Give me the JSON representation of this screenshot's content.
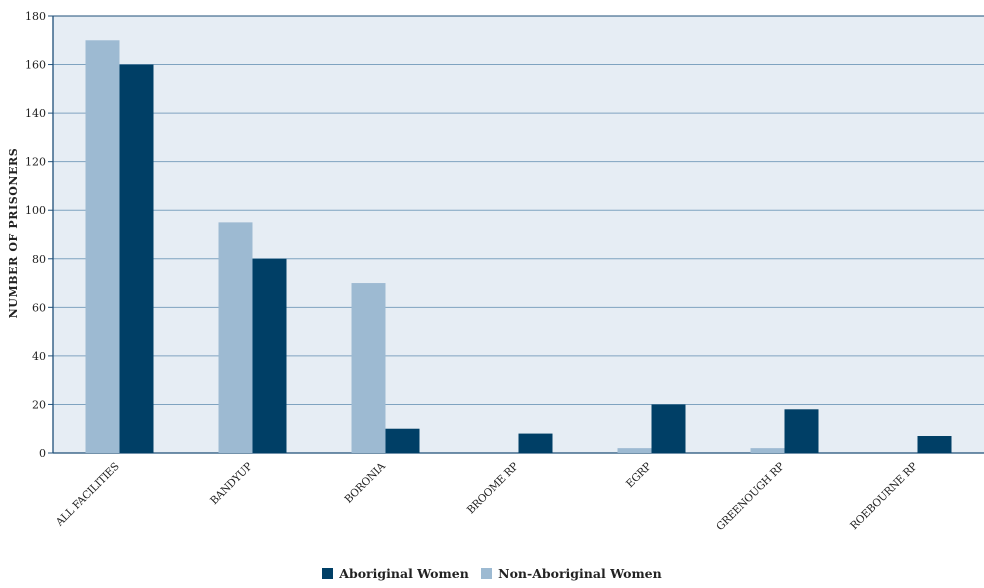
{
  "chart_data": {
    "type": "bar",
    "title": "",
    "xlabel": "",
    "ylabel": "NUMBER OF PRISONERS",
    "ylim": [
      0,
      180
    ],
    "yticks": [
      0,
      20,
      40,
      60,
      80,
      100,
      120,
      140,
      160,
      180
    ],
    "grid": true,
    "legend_position": "bottom",
    "categories": [
      "ALL FACILITIES",
      "BANDYUP",
      "BORONIA",
      "BROOME RP",
      "EGRP",
      "GREENOUGH RP",
      "ROEBOURNE RP"
    ],
    "series": [
      {
        "name": "Non-Aboriginal Women",
        "color": "#9dbad2",
        "values": [
          170,
          95,
          70,
          0,
          2,
          2,
          0
        ]
      },
      {
        "name": "Aboriginal Women",
        "color": "#003f66",
        "values": [
          160,
          80,
          10,
          8,
          20,
          18,
          7
        ]
      }
    ],
    "legend_order": [
      "Aboriginal Women",
      "Non-Aboriginal Women"
    ],
    "plot_background": "#e6edf4",
    "grid_color": "#7fa3c0",
    "axis_color": "#1f4f78"
  }
}
